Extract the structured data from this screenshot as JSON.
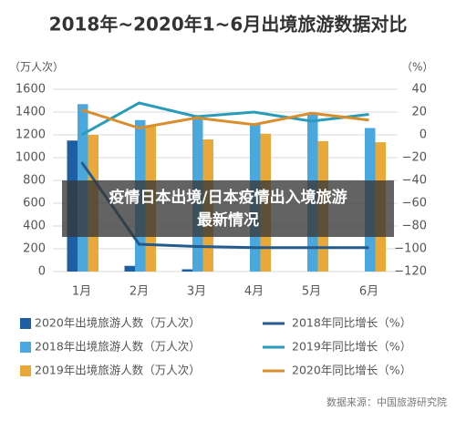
{
  "chart_data": {
    "type": "bar",
    "title": "2018年~2020年1~6月出境旅游数据对比",
    "y_axis_label": "（万人次）",
    "y2_axis_label": "（%）",
    "categories": [
      "1月",
      "2月",
      "3月",
      "4月",
      "5月",
      "6月"
    ],
    "series": [
      {
        "name": "2020年出境旅游人数（万人次）",
        "kind": "bar",
        "color": "#1d5fa0",
        "values": [
          1150,
          50,
          20,
          0,
          0,
          0
        ]
      },
      {
        "name": "2018年出境旅游人数（万人次）",
        "kind": "bar",
        "color": "#4aa8de",
        "values": [
          1470,
          1330,
          1370,
          1300,
          1390,
          1260
        ]
      },
      {
        "name": "2019年出境旅游人数（万人次）",
        "kind": "bar",
        "color": "#e9a83a",
        "values": [
          1200,
          1280,
          1160,
          1210,
          1145,
          1135
        ]
      },
      {
        "name": "2018年同比增长（%）",
        "kind": "line",
        "axis": "y2",
        "color": "#245a8c",
        "values": [
          -24,
          -96,
          -98,
          -99,
          -99,
          -99
        ]
      },
      {
        "name": "2019年同比增长（%）",
        "kind": "line",
        "axis": "y2",
        "color": "#2a9bb8",
        "values": [
          0,
          28,
          16,
          20,
          12,
          18
        ]
      },
      {
        "name": "2020年同比增长（%）",
        "kind": "line",
        "axis": "y2",
        "color": "#d98e2e",
        "values": [
          22,
          6,
          15,
          9,
          19,
          13
        ]
      }
    ],
    "ylim": [
      0,
      1600
    ],
    "yticks": [
      0,
      200,
      400,
      600,
      800,
      1000,
      1200,
      1400,
      1600
    ],
    "y2lim": [
      -120,
      40
    ],
    "y2ticks": [
      {
        "value": -120,
        "label": "−120"
      },
      {
        "value": -100,
        "label": "−100"
      },
      {
        "value": -80,
        "label": "−80"
      },
      {
        "value": -60,
        "label": "−60"
      },
      {
        "value": -40,
        "label": "−40"
      },
      {
        "value": -20,
        "label": "−20"
      },
      0,
      20,
      40
    ],
    "grid": true,
    "overlay_text": [
      "疫情日本出境/日本疫情出入境旅游",
      "最新情况"
    ],
    "source": "数据来源：中国旅游研究院"
  }
}
